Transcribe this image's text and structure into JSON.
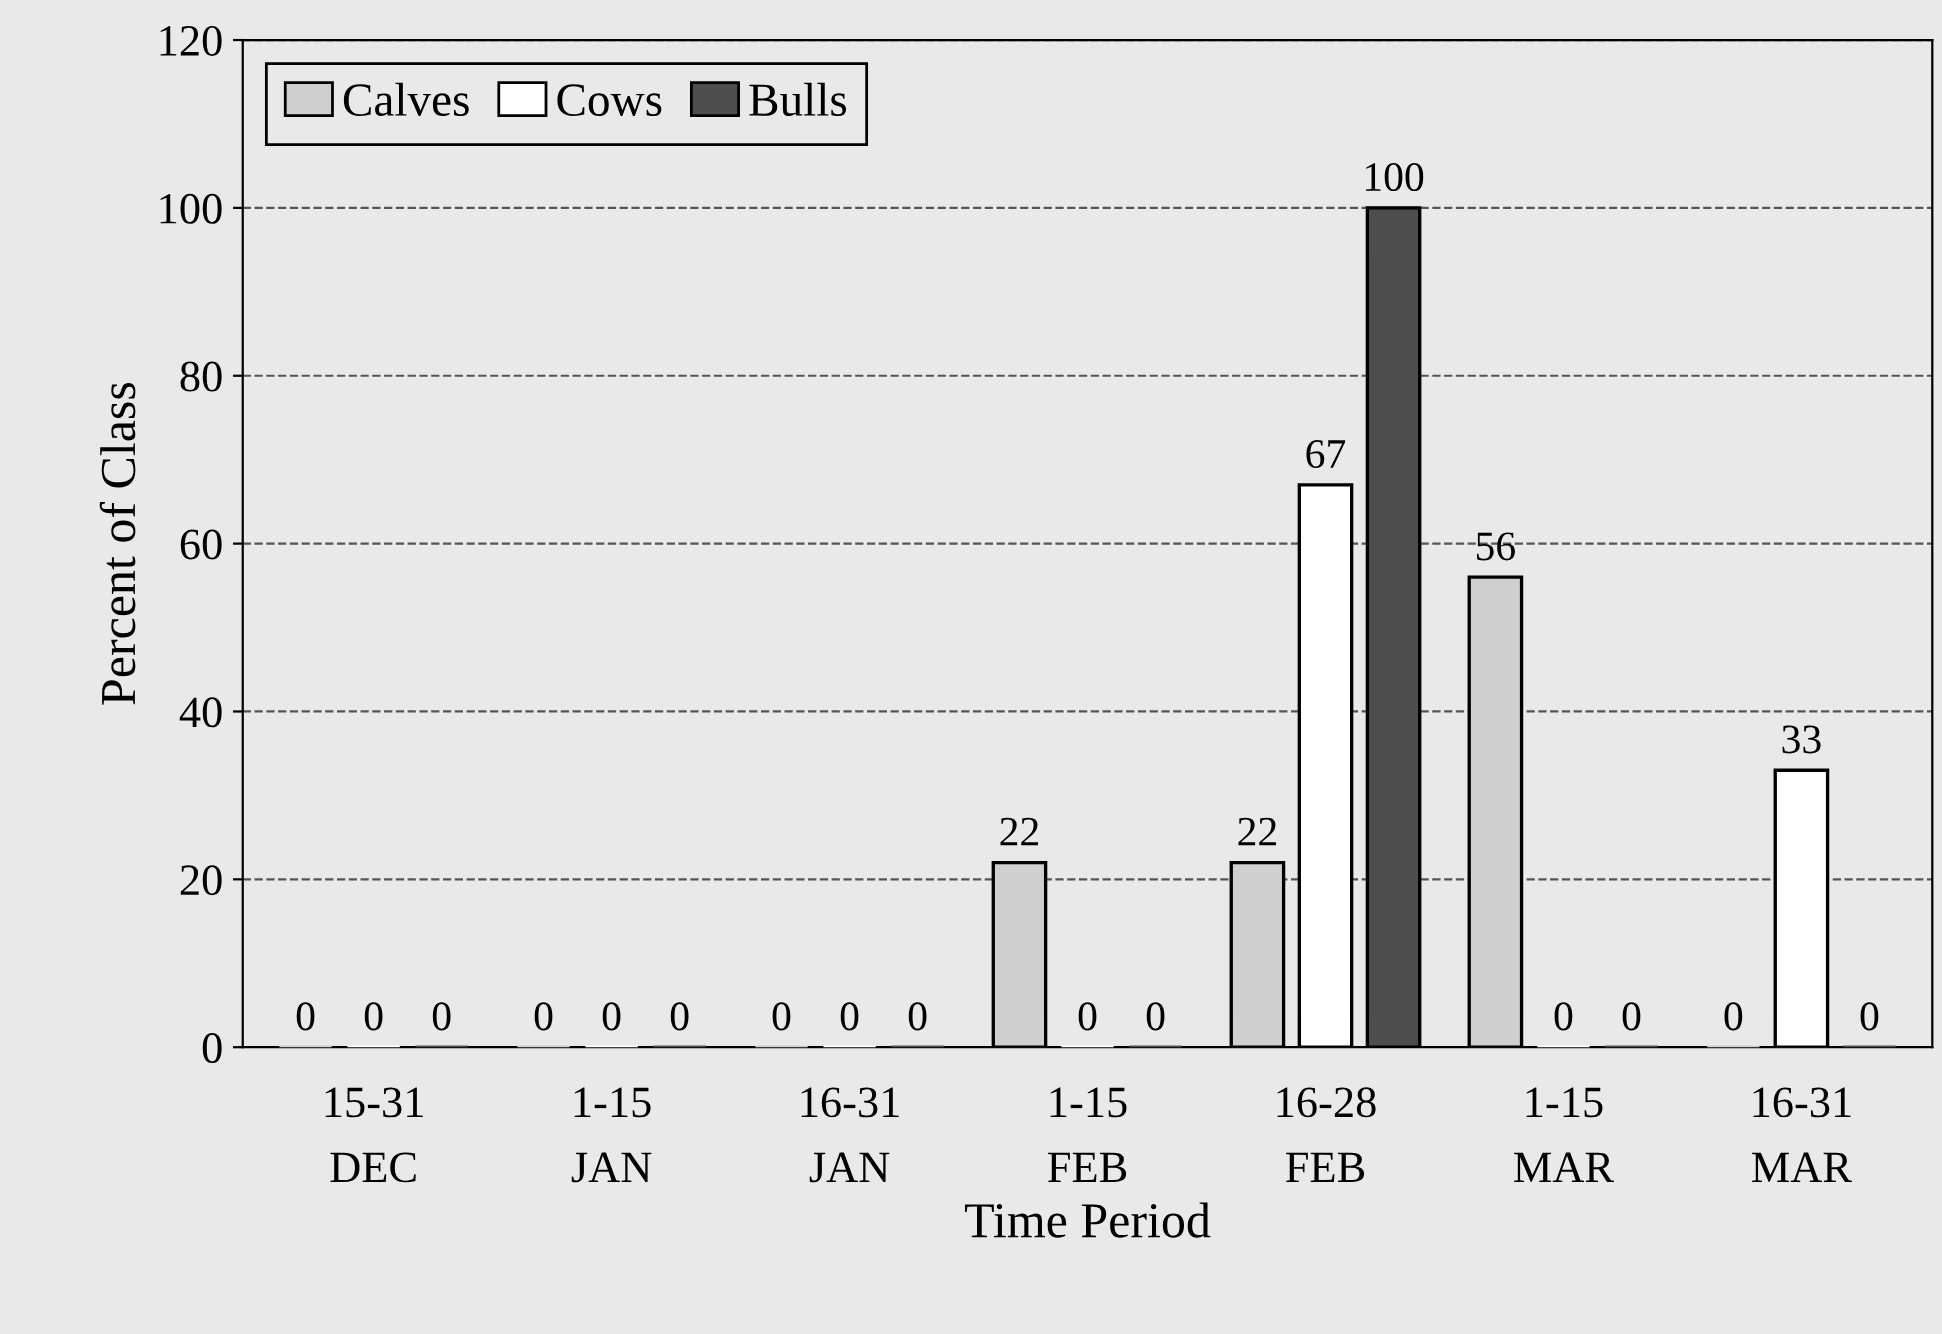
{
  "chart_data": {
    "type": "bar",
    "xlabel": "Time Period",
    "ylabel": "Percent of Class",
    "categories": [
      "15-31\nDEC",
      "1-15\nJAN",
      "16-31\nJAN",
      "1-15\nFEB",
      "16-28\nFEB",
      "1-15\nMAR",
      "16-31\nMAR"
    ],
    "series": [
      {
        "name": "Calves",
        "color": "#cfcfcf",
        "values": [
          0,
          0,
          0,
          22,
          22,
          56,
          0
        ]
      },
      {
        "name": "Cows",
        "color": "#ffffff",
        "values": [
          0,
          0,
          0,
          0,
          67,
          0,
          33
        ]
      },
      {
        "name": "Bulls",
        "color": "#4d4d4d",
        "values": [
          0,
          0,
          0,
          0,
          100,
          0,
          0
        ]
      }
    ],
    "ylim": [
      0,
      120
    ],
    "yticks": [
      0,
      20,
      40,
      60,
      80,
      100,
      120
    ],
    "grid": "y",
    "legend": "top left",
    "data_labels": true
  }
}
